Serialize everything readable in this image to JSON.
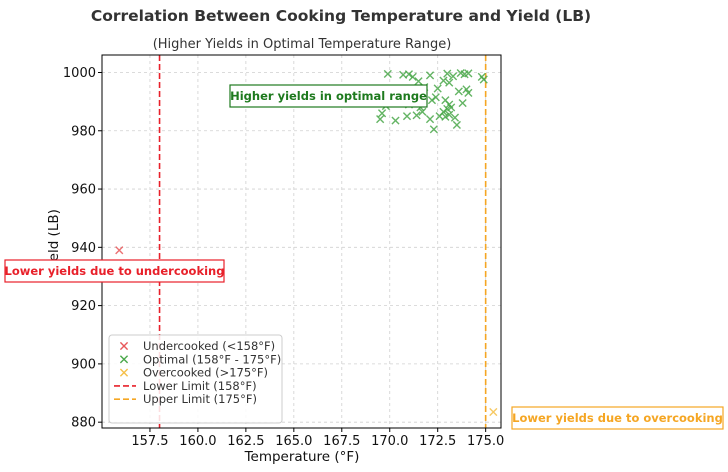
{
  "chart_data": {
    "type": "scatter",
    "title": "Correlation Between Cooking Temperature and Yield (LB)",
    "subtitle": "(Higher Yields in Optimal Temperature Range)",
    "xlabel": "Temperature (°F)",
    "ylabel": "Yield (LB)",
    "xlim": [
      155.0,
      175.8
    ],
    "ylim": [
      878,
      1006
    ],
    "x_ticks": [
      157.5,
      160.0,
      162.5,
      165.0,
      167.5,
      170.0,
      172.5,
      175.0
    ],
    "x_tick_labels": [
      "157.5",
      "160.0",
      "162.5",
      "165.0",
      "167.5",
      "170.0",
      "172.5",
      "175.0"
    ],
    "y_ticks": [
      880,
      900,
      920,
      940,
      960,
      980,
      1000
    ],
    "y_tick_labels": [
      "880",
      "900",
      "920",
      "940",
      "960",
      "980",
      "1000"
    ],
    "grid": true,
    "legend_position": "lower-left",
    "series": [
      {
        "name": "Undercooked (<158°F)",
        "color": "#e8585a",
        "marker": "x",
        "points": [
          [
            155.9,
            939
          ]
        ]
      },
      {
        "name": "Optimal (158°F - 175°F)",
        "color": "#4aa84a",
        "marker": "x",
        "points": [
          [
            169.9,
            999.5
          ],
          [
            170.7,
            999.2
          ],
          [
            171.0,
            999.4
          ],
          [
            171.2,
            998.5
          ],
          [
            172.1,
            999.0
          ],
          [
            173.0,
            999.6
          ],
          [
            173.3,
            998.7
          ],
          [
            173.7,
            999.8
          ],
          [
            173.9,
            999.4
          ],
          [
            174.1,
            999.7
          ],
          [
            174.8,
            998.5
          ],
          [
            174.9,
            997.6
          ],
          [
            171.5,
            997.0
          ],
          [
            172.8,
            997.2
          ],
          [
            173.1,
            996.5
          ],
          [
            171.8,
            995.0
          ],
          [
            172.5,
            994.5
          ],
          [
            173.6,
            993.5
          ],
          [
            174.0,
            994.2
          ],
          [
            174.1,
            993.0
          ],
          [
            169.6,
            993.0
          ],
          [
            170.6,
            993.5
          ],
          [
            169.4,
            990.0
          ],
          [
            169.8,
            988.5
          ],
          [
            170.3,
            990.5
          ],
          [
            171.0,
            989.0
          ],
          [
            171.6,
            988.0
          ],
          [
            172.2,
            990.5
          ],
          [
            172.4,
            991.5
          ],
          [
            172.9,
            990.5
          ],
          [
            173.1,
            989.0
          ],
          [
            173.8,
            989.5
          ],
          [
            173.2,
            988.0
          ],
          [
            169.6,
            986.0
          ],
          [
            169.5,
            984.0
          ],
          [
            170.3,
            983.5
          ],
          [
            170.9,
            985.0
          ],
          [
            171.4,
            985.3
          ],
          [
            171.7,
            986.5
          ],
          [
            172.1,
            984.0
          ],
          [
            172.6,
            985.0
          ],
          [
            172.8,
            986.5
          ],
          [
            173.0,
            987.5
          ],
          [
            172.9,
            984.8
          ],
          [
            173.1,
            985.5
          ],
          [
            173.4,
            984.5
          ],
          [
            172.3,
            980.5
          ],
          [
            173.5,
            982.0
          ]
        ]
      },
      {
        "name": "Overcooked (>175°F)",
        "color": "#f5c04a",
        "marker": "x",
        "points": [
          [
            175.4,
            883.5
          ]
        ]
      }
    ],
    "reference_lines": [
      {
        "name": "Lower Limit (158°F)",
        "x": 158.0,
        "color": "#e8202a",
        "style": "dashed"
      },
      {
        "name": "Upper Limit (175°F)",
        "x": 175.0,
        "color": "#f5a623",
        "style": "dashed"
      }
    ],
    "annotations": [
      {
        "text": "Higher yields in optimal range",
        "color": "#1e7a1e"
      },
      {
        "text": "Lower yields due to undercooking",
        "color": "#e8202a"
      },
      {
        "text": "Lower yields due to overcooking",
        "color": "#f5a623"
      }
    ]
  }
}
